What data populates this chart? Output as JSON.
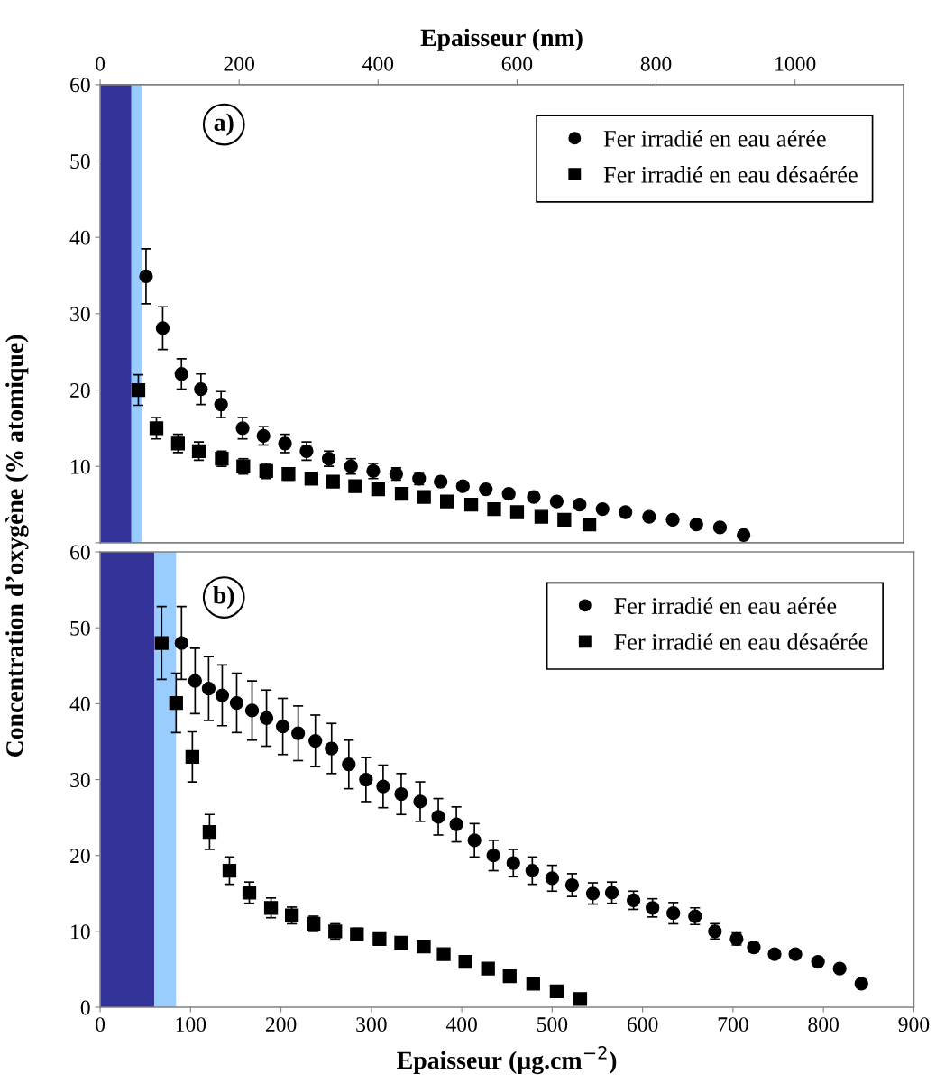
{
  "chart_data": [
    {
      "type": "scatter",
      "xlabel": "Epaisseur (nm)",
      "annotations": [
        "a)"
      ],
      "legend": "top right",
      "grid": false,
      "xlim": [
        0,
        1156
      ],
      "xticks": [
        0,
        200,
        400,
        600,
        800,
        1000
      ],
      "ylim": [
        0,
        60
      ],
      "yticks": [
        {
          "value": 0,
          "label": null
        },
        10,
        20,
        30,
        40,
        50,
        60
      ],
      "bands": [
        {
          "axis": "x",
          "from": 0,
          "to": 45,
          "color": "#333399"
        },
        {
          "axis": "x",
          "from": 45,
          "to": 59.5,
          "color": "#99ccff"
        }
      ],
      "series": [
        {
          "name": "Fer irradié en eau aérée",
          "color": "#000000",
          "marker": "circle",
          "x": [
            66,
            90,
            117,
            145,
            174,
            205,
            235,
            266,
            297,
            329,
            361,
            393,
            426,
            459,
            490,
            522,
            555,
            588,
            624,
            657,
            690,
            723,
            756,
            790,
            824,
            858,
            892,
            926
          ],
          "values": [
            34.9,
            28.1,
            22.1,
            20.1,
            18.1,
            15.0,
            14.0,
            13.0,
            12.0,
            11.0,
            10.0,
            9.4,
            9.0,
            8.4,
            8.0,
            7.4,
            7.0,
            6.4,
            6.0,
            5.4,
            5.0,
            4.4,
            4.0,
            3.4,
            3.0,
            2.4,
            2.0,
            1.0
          ],
          "errors": [
            3.6,
            2.8,
            2.0,
            2.0,
            1.7,
            1.4,
            1.2,
            1.2,
            1.2,
            1.0,
            1.0,
            1.0,
            0.8,
            0.8,
            null,
            null,
            null,
            null,
            null,
            null,
            null,
            null,
            null,
            null,
            null,
            null,
            null,
            null
          ]
        },
        {
          "name": "Fer irradié en eau désaérée",
          "color": "#000000",
          "marker": "square",
          "x": [
            55,
            81,
            112,
            142,
            175,
            206,
            239,
            271,
            304,
            335,
            367,
            400,
            434,
            466,
            499,
            534,
            567,
            600,
            635,
            668,
            704
          ],
          "values": [
            20.0,
            15.0,
            13.0,
            12.0,
            11.0,
            10.0,
            9.4,
            9.0,
            8.4,
            8.0,
            7.4,
            7.0,
            6.4,
            6.0,
            5.4,
            5.0,
            4.4,
            4.0,
            3.4,
            3.0,
            2.4
          ],
          "errors": [
            2.0,
            1.4,
            1.2,
            1.2,
            1.0,
            1.0,
            1.0,
            0.8,
            0.6,
            null,
            null,
            null,
            null,
            null,
            null,
            null,
            null,
            null,
            null,
            null,
            null
          ]
        }
      ]
    },
    {
      "type": "scatter",
      "xlabel": "Epaisseur (µg.cm$^{−2}$)",
      "ylabel": "Concentration d’oxygène (% atomique)",
      "annotations": [
        "b)"
      ],
      "legend": "top right",
      "grid": false,
      "xlim": [
        0,
        900
      ],
      "xticks": [
        0,
        100,
        200,
        300,
        400,
        500,
        600,
        700,
        800,
        900
      ],
      "ylim": [
        0,
        60
      ],
      "yticks": [
        0,
        10,
        20,
        30,
        40,
        50,
        60
      ],
      "bands": [
        {
          "axis": "x",
          "from": 0,
          "to": 60,
          "color": "#333399"
        },
        {
          "axis": "x",
          "from": 60,
          "to": 84,
          "color": "#99ccff"
        }
      ],
      "series": [
        {
          "name": "Fer irradié en eau aérée",
          "color": "#000000",
          "marker": "circle",
          "x": [
            90,
            105,
            120,
            135,
            151,
            168,
            184,
            202,
            219,
            238,
            256,
            275,
            294,
            313,
            333,
            354,
            374,
            394,
            414,
            435,
            457,
            478,
            500,
            522,
            545,
            566,
            590,
            611,
            634,
            658,
            680,
            704,
            723,
            746,
            769,
            794,
            818,
            842
          ],
          "values": [
            48.0,
            43.0,
            42.0,
            41.1,
            40.1,
            39.1,
            38.1,
            37.0,
            36.1,
            35.1,
            34.1,
            32.0,
            30.0,
            29.1,
            28.1,
            27.1,
            25.1,
            24.1,
            22.0,
            20.0,
            19.0,
            18.0,
            17.0,
            16.1,
            15.0,
            15.1,
            14.1,
            13.1,
            12.4,
            12.0,
            10.0,
            9.0,
            7.9,
            7.0,
            7.0,
            6.0,
            5.1,
            3.1
          ],
          "errors": [
            4.8,
            4.3,
            4.2,
            4.0,
            3.9,
            3.9,
            3.7,
            3.7,
            3.6,
            3.4,
            3.3,
            3.2,
            2.9,
            2.8,
            2.7,
            2.6,
            2.4,
            2.3,
            2.2,
            2.0,
            1.8,
            1.8,
            1.7,
            1.5,
            1.4,
            1.4,
            1.2,
            1.2,
            1.4,
            1.1,
            1.0,
            0.8,
            0.6,
            0.5,
            null,
            null,
            null,
            null
          ]
        },
        {
          "name": "Fer irradié en eau désaérée",
          "color": "#000000",
          "marker": "square",
          "x": [
            68,
            84,
            102,
            121,
            143,
            165,
            189,
            212,
            236,
            260,
            284,
            309,
            333,
            358,
            380,
            404,
            429,
            453,
            479,
            505,
            531
          ],
          "values": [
            48.0,
            40.1,
            33.0,
            23.1,
            18.0,
            15.1,
            13.1,
            12.1,
            11.0,
            10.0,
            9.6,
            9.0,
            8.5,
            8.0,
            7.0,
            6.0,
            5.1,
            4.1,
            3.1,
            2.1,
            1.1
          ],
          "errors": [
            4.8,
            3.9,
            3.3,
            2.3,
            1.8,
            1.4,
            1.3,
            1.1,
            1.0,
            1.0,
            0.8,
            0.6,
            0.5,
            null,
            null,
            null,
            null,
            null,
            null,
            null,
            null
          ]
        }
      ]
    }
  ]
}
